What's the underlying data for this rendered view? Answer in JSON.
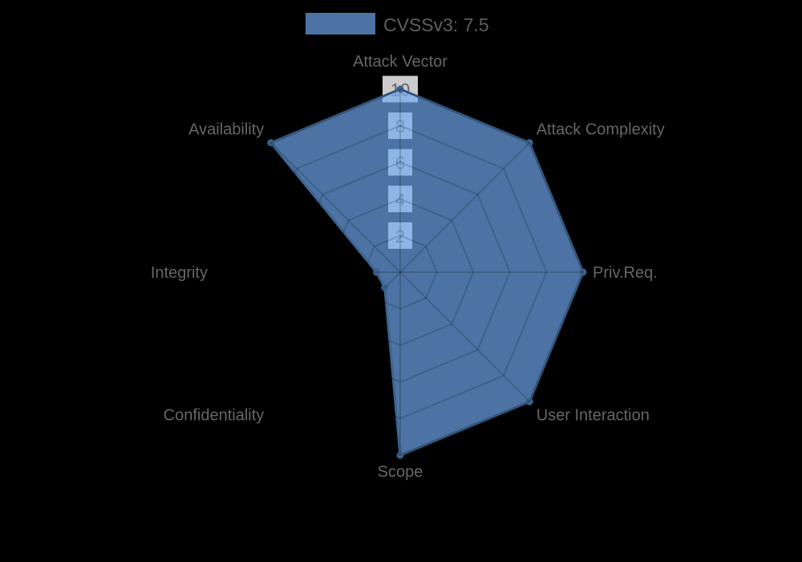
{
  "chart_data": {
    "type": "radar",
    "title": "",
    "legend_position": "top",
    "legend": [
      {
        "label": "CVSSv3: 7.5"
      }
    ],
    "categories": [
      "Attack Vector",
      "Attack Complexity",
      "Priv.Req.",
      "User Interaction",
      "Scope",
      "Confidentiality",
      "Integrity",
      "Availability"
    ],
    "series": [
      {
        "name": "CVSSv3: 7.5",
        "values": [
          10,
          10,
          10,
          10,
          10,
          1.2,
          1.3,
          10
        ]
      }
    ],
    "ticks": [
      2,
      4,
      6,
      8,
      10
    ],
    "axis_range": [
      0,
      10
    ],
    "grid": true,
    "colors": {
      "background": "#000000",
      "fill_rgba": "rgba(112,170,240,0.68)",
      "border": "#3c648e",
      "point": "#3c648e",
      "grid_rgba": "rgba(0,0,0,0.16)",
      "tick_backdrop_rgba": "rgba(255,255,255,0.8)",
      "tick_text": "#666666",
      "label_text": "#666666",
      "legend_text": "#5e5e5e"
    }
  }
}
